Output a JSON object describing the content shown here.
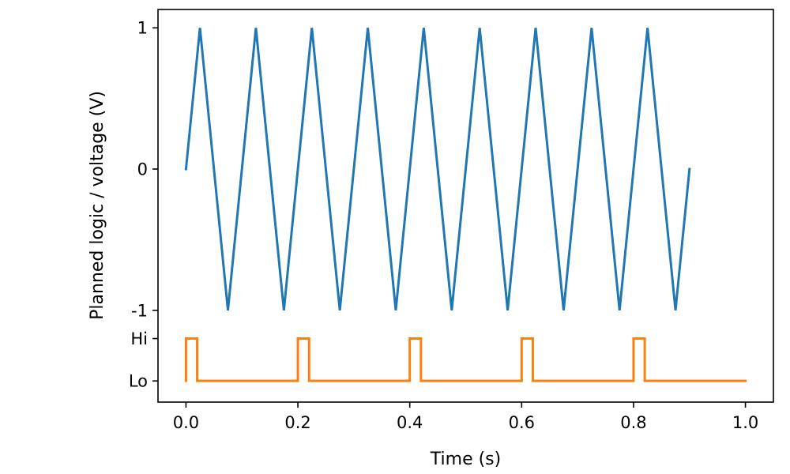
{
  "chart_data": {
    "type": "line",
    "title": "",
    "xlabel": "Time (s)",
    "ylabel": "Planned logic / voltage (V)",
    "xlim": [
      -0.05,
      1.05
    ],
    "x_ticks": [
      {
        "value": 0.0,
        "label": "0.0"
      },
      {
        "value": 0.2,
        "label": "0.2"
      },
      {
        "value": 0.4,
        "label": "0.4"
      },
      {
        "value": 0.6,
        "label": "0.6"
      },
      {
        "value": 0.8,
        "label": "0.8"
      },
      {
        "value": 1.0,
        "label": "1.0"
      }
    ],
    "y_ticks": [
      {
        "value": 1,
        "label": "1"
      },
      {
        "value": 0,
        "label": "0"
      },
      {
        "value": -1,
        "label": "-1"
      },
      {
        "value": -1.2,
        "label": "Hi"
      },
      {
        "value": -1.5,
        "label": "Lo"
      }
    ],
    "ylim": [
      -1.65,
      1.13
    ],
    "grid": false,
    "series": [
      {
        "color": "#1f77b4",
        "x": [
          0,
          0.025,
          0.075,
          0.125,
          0.175,
          0.225,
          0.275,
          0.325,
          0.375,
          0.425,
          0.475,
          0.525,
          0.575,
          0.625,
          0.675,
          0.725,
          0.775,
          0.825,
          0.875,
          0.9
        ],
        "y": [
          0,
          1,
          -1,
          1,
          -1,
          1,
          -1,
          1,
          -1,
          1,
          -1,
          1,
          -1,
          1,
          -1,
          1,
          -1,
          1,
          -1,
          0
        ]
      },
      {
        "color": "#ff7f0e",
        "step": true,
        "x": [
          0,
          0,
          0.02,
          0.02,
          0.2,
          0.2,
          0.22,
          0.22,
          0.4,
          0.4,
          0.42,
          0.42,
          0.6,
          0.6,
          0.62,
          0.62,
          0.8,
          0.8,
          0.82,
          0.82,
          1.0
        ],
        "y": [
          -1.5,
          -1.2,
          -1.2,
          -1.5,
          -1.5,
          -1.2,
          -1.2,
          -1.5,
          -1.5,
          -1.2,
          -1.2,
          -1.5,
          -1.5,
          -1.2,
          -1.2,
          -1.5,
          -1.5,
          -1.2,
          -1.2,
          -1.5,
          -1.5
        ]
      }
    ]
  }
}
